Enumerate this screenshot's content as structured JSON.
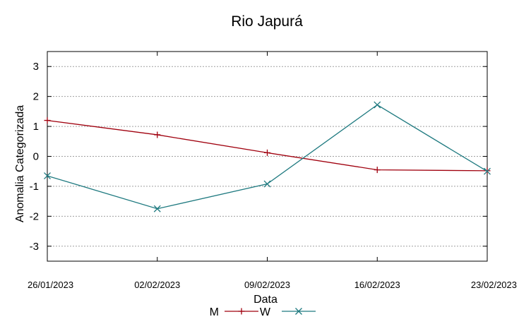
{
  "chart_data": {
    "type": "line",
    "title": "Rio Japurá",
    "xlabel": "Data",
    "ylabel": "Anomalia Categorizada",
    "categories": [
      "26/01/2023",
      "02/02/2023",
      "09/02/2023",
      "16/02/2023",
      "23/02/2023"
    ],
    "ylim": [
      -3.5,
      3.5
    ],
    "yticks": [
      -3,
      -2,
      -1,
      0,
      1,
      2,
      3
    ],
    "grid": true,
    "legend_position": "bottom-center",
    "series": [
      {
        "name": "M",
        "color": "#a0000e",
        "marker": "plus",
        "values": [
          1.2,
          0.72,
          0.12,
          -0.45,
          -0.48
        ]
      },
      {
        "name": "W",
        "color": "#1f7a80",
        "marker": "cross",
        "values": [
          -0.65,
          -1.75,
          -0.92,
          1.72,
          -0.5
        ]
      }
    ]
  }
}
